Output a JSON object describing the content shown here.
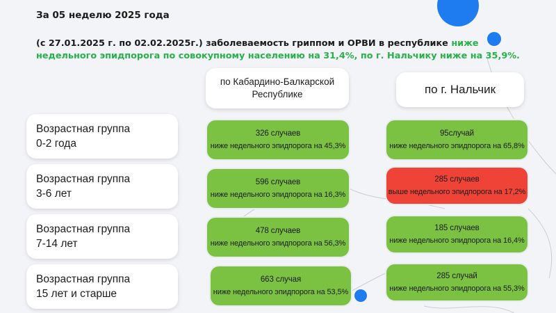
{
  "header": {
    "week_title": "За 05 неделю 2025 года",
    "summary_plain": "(с 27.01.2025 г. по 02.02.2025г.) заболеваемость гриппом и ОРВИ в республике ",
    "summary_highlight": "ниже недельного эпидпорога по совокупному населению на 31,4%, по г. Нальчику ниже на 35,9%."
  },
  "columns": {
    "republic": "по Кабардино-Балкарской Республике",
    "nalchik": "по г. Нальчик"
  },
  "rows": [
    {
      "age_group": "Возрастная группа\n0-2 года",
      "republic": {
        "cases": "326 случаев",
        "status": "ниже недельного эпидпорога на 45,3%",
        "color": "#7cc242"
      },
      "nalchik": {
        "cases": "95случай",
        "status": "ниже недельного эпидпорога на 65,8%",
        "color": "#7cc242"
      }
    },
    {
      "age_group": "Возрастная группа\n3-6 лет",
      "republic": {
        "cases": "596 случаев",
        "status": "ниже недельного эпидпорога на 16,3%",
        "color": "#7cc242"
      },
      "nalchik": {
        "cases": "285 случаев",
        "status": "выше недельного эпидпорога на 17,2%",
        "color": "#ef4338"
      }
    },
    {
      "age_group": "Возрастная группа\n7-14 лет",
      "republic": {
        "cases": "478 случаев",
        "status": "ниже недельного эпидпорога на 56,3%",
        "color": "#7cc242"
      },
      "nalchik": {
        "cases": "185 случаев",
        "status": "ниже недельного эпидпорога на 16,4%",
        "color": "#7cc242"
      }
    },
    {
      "age_group": "Возрастная группа\n15 лет и старше",
      "republic": {
        "cases": "663 случая",
        "status": "ниже недельного эпидпорога на 53,5%",
        "color": "#7cc242"
      },
      "nalchik": {
        "cases": "285 случай",
        "status": "ниже недельного эпидпорога на 55,3%",
        "color": "#7cc242"
      }
    }
  ],
  "colors": {
    "accent_blue": "#1e7bf0",
    "highlight_green": "#27b24a",
    "below_threshold": "#7cc242",
    "above_threshold": "#ef4338"
  }
}
